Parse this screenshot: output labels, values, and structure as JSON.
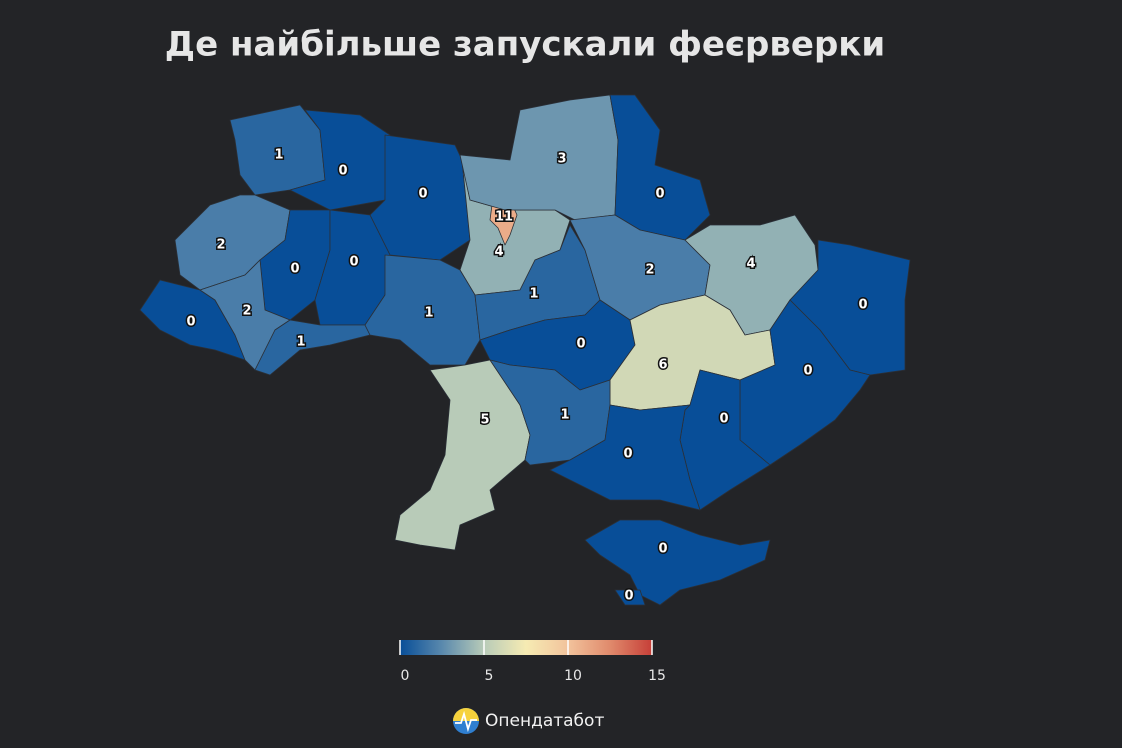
{
  "chart_data": {
    "type": "choropleth",
    "title": "Де найбільше запускали феєрверки",
    "values": [
      1,
      0,
      0,
      4,
      11,
      3,
      0,
      2,
      0,
      0,
      0,
      2,
      1,
      1,
      1,
      2,
      4,
      0,
      0,
      6,
      0,
      5,
      1,
      0,
      0,
      0,
      0
    ],
    "clim": [
      0,
      15
    ],
    "cticks": [
      0,
      5,
      10,
      15
    ],
    "colorscale": [
      "#084e98",
      "#5a89ad",
      "#b8cbb8",
      "#f6ebb3",
      "#f2c39c",
      "#e08a6c",
      "#c63f38"
    ]
  },
  "footer": {
    "brand": "Опендатабот"
  }
}
